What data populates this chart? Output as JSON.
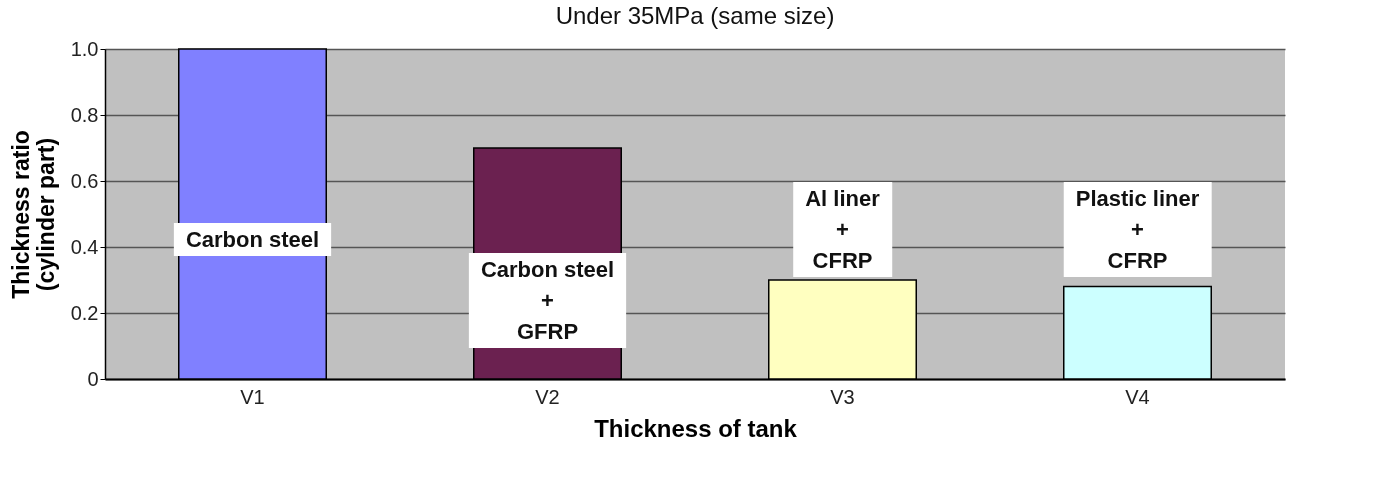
{
  "chart_data": {
    "type": "bar",
    "title": "Under 35MPa (same size)",
    "xlabel": "Thickness of tank",
    "ylabel": "Thickness ratio\n(cylinder part)",
    "categories": [
      "V1",
      "V2",
      "V3",
      "V4"
    ],
    "values": [
      1.0,
      0.7,
      0.3,
      0.28
    ],
    "colors": [
      "#8080ff",
      "#6b2150",
      "#ffffc0",
      "#ccffff"
    ],
    "ylim": [
      0,
      1
    ],
    "yticks": [
      0,
      0.2,
      0.4,
      0.6,
      {
        "value": 1,
        "label": "1.0"
      },
      0.8
    ],
    "grid": "y",
    "annotations": [
      "Carbon steel",
      "Carbon steel\n+\nGFRP",
      "Al liner\n+\nCFRP",
      "Plastic liner\n+\nCFRP"
    ]
  }
}
